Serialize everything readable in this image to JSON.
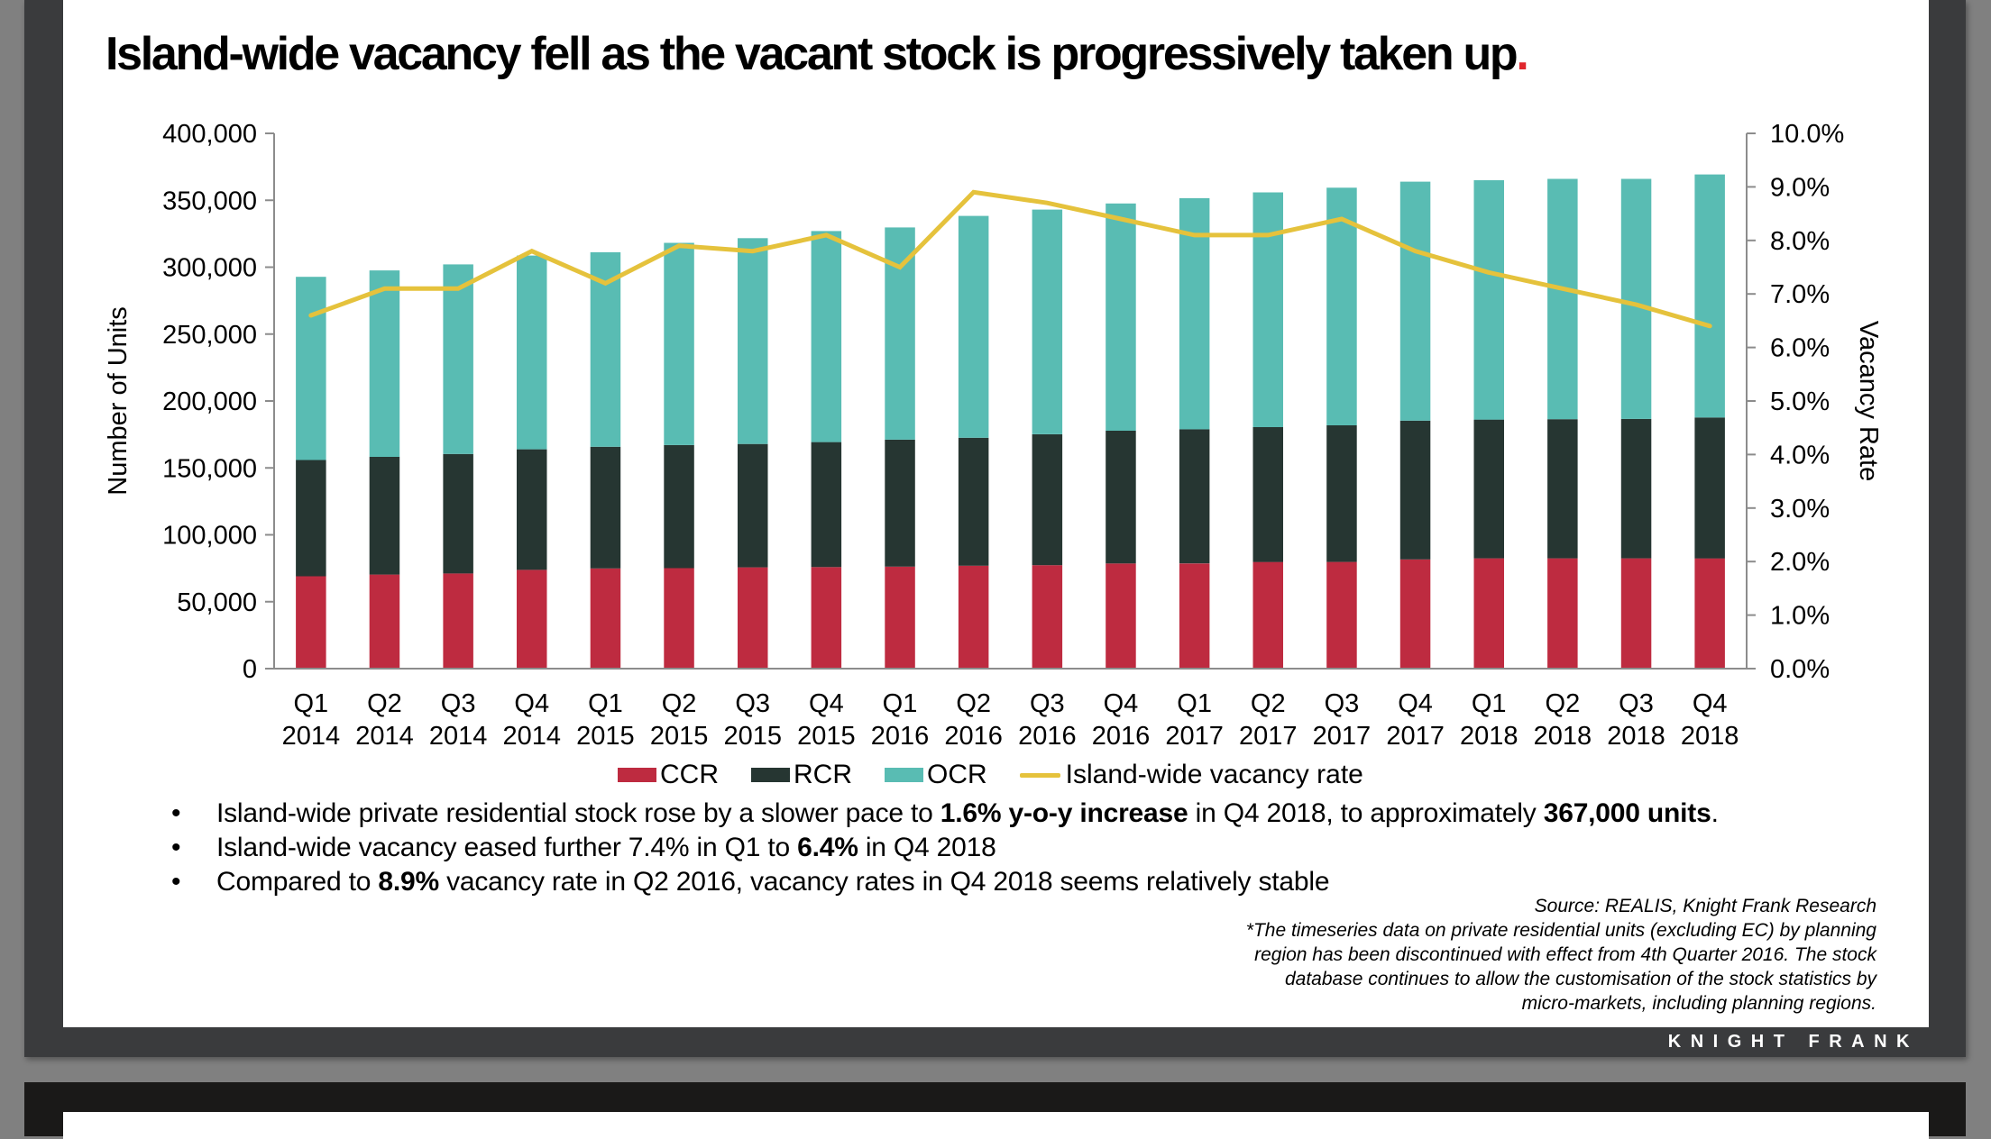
{
  "slide": {
    "title": "Island-wide vacancy fell as the vacant stock is progressively taken up",
    "title_period": ".",
    "brand": "KNIGHT FRANK",
    "bullets": [
      {
        "parts": [
          {
            "text": "Island-wide private residential stock rose by a slower pace to ",
            "bold": false
          },
          {
            "text": "1.6% y-o-y increase",
            "bold": true
          },
          {
            "text": " in Q4 2018, to approximately ",
            "bold": false
          },
          {
            "text": "367,000 units",
            "bold": true
          },
          {
            "text": ".",
            "bold": false
          }
        ]
      },
      {
        "parts": [
          {
            "text": "Island-wide vacancy eased further 7.4% in Q1 to ",
            "bold": false
          },
          {
            "text": "6.4%",
            "bold": true
          },
          {
            "text": " in Q4 2018",
            "bold": false
          }
        ]
      },
      {
        "parts": [
          {
            "text": "Compared to ",
            "bold": false
          },
          {
            "text": "8.9%",
            "bold": true
          },
          {
            "text": " vacancy rate in Q2 2016, vacancy rates in Q4 2018 seems relatively stable",
            "bold": false
          }
        ]
      }
    ],
    "bullet_glyph": "•",
    "source_lines": [
      "Source: REALIS, Knight Frank Research",
      "*The timeseries data on private residential units (excluding EC) by planning",
      "region has been discontinued with effect from 4th Quarter 2016. The stock",
      "database continues to allow the customisation of the stock statistics by",
      "micro-markets, including planning regions."
    ]
  },
  "colors": {
    "CCR": "#be2b40",
    "RCR": "#263632",
    "OCR": "#59bcb3",
    "vacancy": "#e5c23c",
    "title_period": "#e0262d",
    "axis": "#8c8c8c"
  },
  "chart_data": {
    "type": "bar",
    "subtype": "stacked-bar-with-line-secondary-axis",
    "title": "",
    "categories": [
      [
        "Q1",
        "2014"
      ],
      [
        "Q2",
        "2014"
      ],
      [
        "Q3",
        "2014"
      ],
      [
        "Q4",
        "2014"
      ],
      [
        "Q1",
        "2015"
      ],
      [
        "Q2",
        "2015"
      ],
      [
        "Q3",
        "2015"
      ],
      [
        "Q4",
        "2015"
      ],
      [
        "Q1",
        "2016"
      ],
      [
        "Q2",
        "2016"
      ],
      [
        "Q3",
        "2016"
      ],
      [
        "Q4",
        "2016"
      ],
      [
        "Q1",
        "2017"
      ],
      [
        "Q2",
        "2017"
      ],
      [
        "Q3",
        "2017"
      ],
      [
        "Q4",
        "2017"
      ],
      [
        "Q1",
        "2018"
      ],
      [
        "Q2",
        "2018"
      ],
      [
        "Q3",
        "2018"
      ],
      [
        "Q4",
        "2018"
      ]
    ],
    "series": [
      {
        "name": "CCR",
        "type": "bar",
        "axis": "left",
        "values": [
          69000,
          70300,
          71100,
          73800,
          74900,
          75100,
          75700,
          75900,
          76200,
          76900,
          77300,
          78600,
          78600,
          79700,
          79700,
          81600,
          82400,
          82400,
          82400,
          82400
        ]
      },
      {
        "name": "RCR",
        "type": "bar",
        "axis": "left",
        "values": [
          86900,
          88000,
          89300,
          90100,
          90900,
          92000,
          92200,
          93400,
          94900,
          95600,
          97800,
          99200,
          100300,
          100800,
          102100,
          103700,
          103700,
          104000,
          104200,
          105300
        ]
      },
      {
        "name": "OCR",
        "type": "bar",
        "axis": "left",
        "values": [
          136900,
          139300,
          141700,
          144800,
          145400,
          151100,
          153800,
          157700,
          158600,
          165800,
          167900,
          169800,
          172700,
          175400,
          177600,
          178600,
          178900,
          179600,
          179400,
          181600
        ]
      },
      {
        "name": "Island-wide vacancy rate",
        "type": "line",
        "axis": "right",
        "values": [
          6.6,
          7.1,
          7.1,
          7.8,
          7.2,
          7.9,
          7.8,
          8.1,
          7.5,
          8.9,
          8.7,
          8.4,
          8.1,
          8.1,
          8.4,
          7.8,
          7.4,
          7.1,
          6.8,
          6.4
        ]
      }
    ],
    "ylabel": "Number of Units",
    "ylim": [
      0,
      400000
    ],
    "yticks": [
      "0",
      "50,000",
      "100,000",
      "150,000",
      "200,000",
      "250,000",
      "300,000",
      "350,000",
      "400,000"
    ],
    "y2label": "Vacancy Rate",
    "y2lim": [
      0,
      10
    ],
    "y2ticks": [
      "0.0%",
      "1.0%",
      "2.0%",
      "3.0%",
      "4.0%",
      "5.0%",
      "6.0%",
      "7.0%",
      "8.0%",
      "9.0%",
      "10.0%"
    ],
    "grid": false,
    "legend": {
      "position": "bottom",
      "entries": [
        "CCR",
        "RCR",
        "OCR",
        "Island-wide vacancy rate"
      ]
    }
  }
}
